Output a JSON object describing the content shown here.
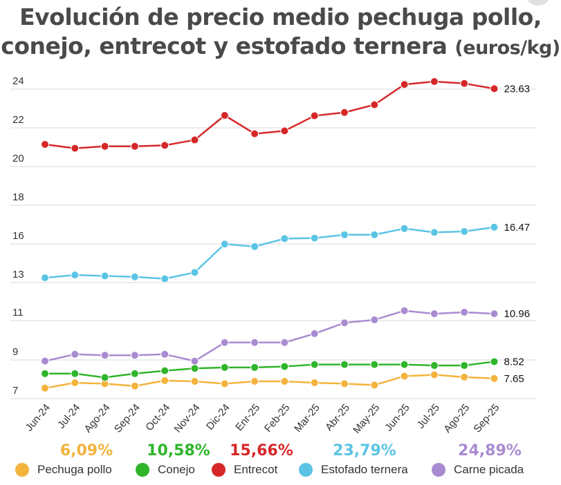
{
  "title_main": "Evolución de precio medio pechuga pollo,",
  "title_line2": "conejo, entrecot y estofado ternera",
  "title_unit": "(euros/kg)",
  "chart_data": {
    "type": "line",
    "categories": [
      "Jun-24",
      "Jul-24",
      "Ago-24",
      "Sep-24",
      "Oct-24",
      "Nov-24",
      "Dic-24",
      "Enr-25",
      "Feb-25",
      "Mar-25",
      "Abr-25",
      "May-25",
      "Jun-25",
      "Jul-25",
      "Ago-25",
      "Sep-25"
    ],
    "y_ticks": [
      "24",
      "22",
      "20",
      "18",
      "16",
      "13",
      "11",
      "9",
      "7"
    ],
    "series": [
      {
        "name": "Pechuga pollo",
        "color": "#f3b33d",
        "end_label": "7.65",
        "change": "6,09%",
        "values": [
          7.15,
          7.43,
          7.38,
          7.26,
          7.54,
          7.5,
          7.38,
          7.5,
          7.5,
          7.43,
          7.38,
          7.31,
          7.77,
          7.84,
          7.72,
          7.65
        ]
      },
      {
        "name": "Conejo",
        "color": "#2fb52a",
        "end_label": "8.52",
        "change": "10,58%",
        "values": [
          7.9,
          7.9,
          7.7,
          7.9,
          8.05,
          8.17,
          8.22,
          8.22,
          8.27,
          8.37,
          8.37,
          8.37,
          8.37,
          8.32,
          8.32,
          8.52
        ]
      },
      {
        "name": "Entrecot",
        "color": "#d62728",
        "end_label": "23.63",
        "change": "15,66%",
        "values": [
          20.75,
          20.55,
          20.65,
          20.65,
          20.7,
          20.98,
          22.25,
          21.3,
          21.45,
          22.23,
          22.4,
          22.8,
          23.85,
          24.0,
          23.9,
          23.63
        ]
      },
      {
        "name": "Estofado ternera",
        "color": "#5bc4e4",
        "end_label": "16.47",
        "change": "23,79%",
        "values": [
          12.85,
          13.0,
          12.95,
          12.9,
          12.8,
          13.2,
          15.4,
          15.2,
          15.82,
          15.86,
          16.08,
          16.08,
          16.4,
          16.2,
          16.25,
          16.47
        ]
      },
      {
        "name": "Carne picada",
        "color": "#a98bd1",
        "end_label": "10.96",
        "change": "24,89%",
        "values": [
          8.55,
          8.9,
          8.85,
          8.85,
          8.9,
          8.55,
          9.5,
          9.5,
          9.5,
          9.95,
          10.5,
          10.65,
          11.12,
          10.96,
          11.04,
          10.96
        ]
      }
    ]
  }
}
